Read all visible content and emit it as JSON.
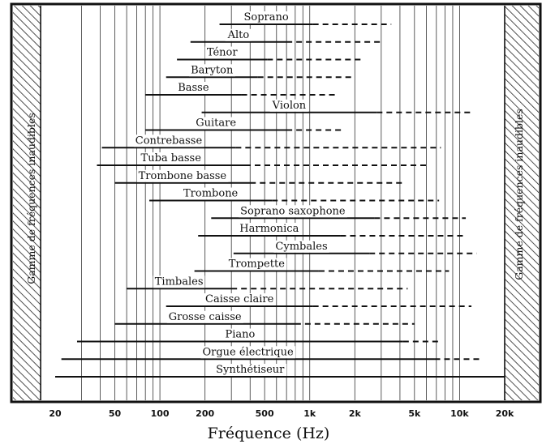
{
  "chart_data": {
    "type": "range-bar",
    "xlabel": "Fréquence (Hz)",
    "x_scale": "log",
    "xlim": [
      16,
      25000
    ],
    "ticks": [
      {
        "value": 20,
        "label": "20"
      },
      {
        "value": 50,
        "label": "50"
      },
      {
        "value": 100,
        "label": "100"
      },
      {
        "value": 200,
        "label": "200"
      },
      {
        "value": 500,
        "label": "500"
      },
      {
        "value": 1000,
        "label": "1k"
      },
      {
        "value": 2000,
        "label": "2k"
      },
      {
        "value": 5000,
        "label": "5k"
      },
      {
        "value": 10000,
        "label": "10k"
      },
      {
        "value": 20000,
        "label": "20k"
      }
    ],
    "inaudible_label": "Gamme de fréquences inaudibles",
    "inaudible_ranges": [
      [
        16,
        20
      ],
      [
        20000,
        25000
      ]
    ],
    "instruments": [
      {
        "name": "Soprano",
        "fundamental": [
          250,
          1050
        ],
        "harmonics_to": 3500
      },
      {
        "name": "Alto",
        "fundamental": [
          160,
          700
        ],
        "harmonics_to": 3000
      },
      {
        "name": "Ténor",
        "fundamental": [
          130,
          520
        ],
        "harmonics_to": 2300
      },
      {
        "name": "Baryton",
        "fundamental": [
          110,
          450
        ],
        "harmonics_to": 2000
      },
      {
        "name": "Basse",
        "fundamental": [
          80,
          350
        ],
        "harmonics_to": 1500
      },
      {
        "name": "Violon",
        "fundamental": [
          190,
          2800
        ],
        "harmonics_to": 12000
      },
      {
        "name": "Guitare",
        "fundamental": [
          80,
          700
        ],
        "harmonics_to": 1700
      },
      {
        "name": "Contrebasse",
        "fundamental": [
          41,
          320
        ],
        "harmonics_to": 7500
      },
      {
        "name": "Tuba basse",
        "fundamental": [
          38,
          370
        ],
        "harmonics_to": 6000
      },
      {
        "name": "Trombone basse",
        "fundamental": [
          50,
          400
        ],
        "harmonics_to": 4200
      },
      {
        "name": "Trombone",
        "fundamental": [
          85,
          560
        ],
        "harmonics_to": 7300
      },
      {
        "name": "Soprano saxophone",
        "fundamental": [
          220,
          2700
        ],
        "harmonics_to": 11000
      },
      {
        "name": "Harmonica",
        "fundamental": [
          180,
          1600
        ],
        "harmonics_to": 11000
      },
      {
        "name": "Cymbales",
        "fundamental": [
          310,
          2500
        ],
        "harmonics_to": 13000
      },
      {
        "name": "Trompette",
        "fundamental": [
          170,
          1150
        ],
        "harmonics_to": 8500
      },
      {
        "name": "Timbales",
        "fundamental": [
          60,
          300
        ],
        "harmonics_to": 4500
      },
      {
        "name": "Caisse claire",
        "fundamental": [
          110,
          1050
        ],
        "harmonics_to": 12000
      },
      {
        "name": "Grosse caisse",
        "fundamental": [
          50,
          800
        ],
        "harmonics_to": 5000
      },
      {
        "name": "Piano",
        "fundamental": [
          28,
          4200
        ],
        "harmonics_to": 7500
      },
      {
        "name": "Orgue électrique",
        "fundamental": [
          22,
          6800
        ],
        "harmonics_to": 14000
      },
      {
        "name": "Synthétiseur",
        "fundamental": [
          20,
          20000
        ],
        "harmonics_to": 20000
      }
    ]
  }
}
